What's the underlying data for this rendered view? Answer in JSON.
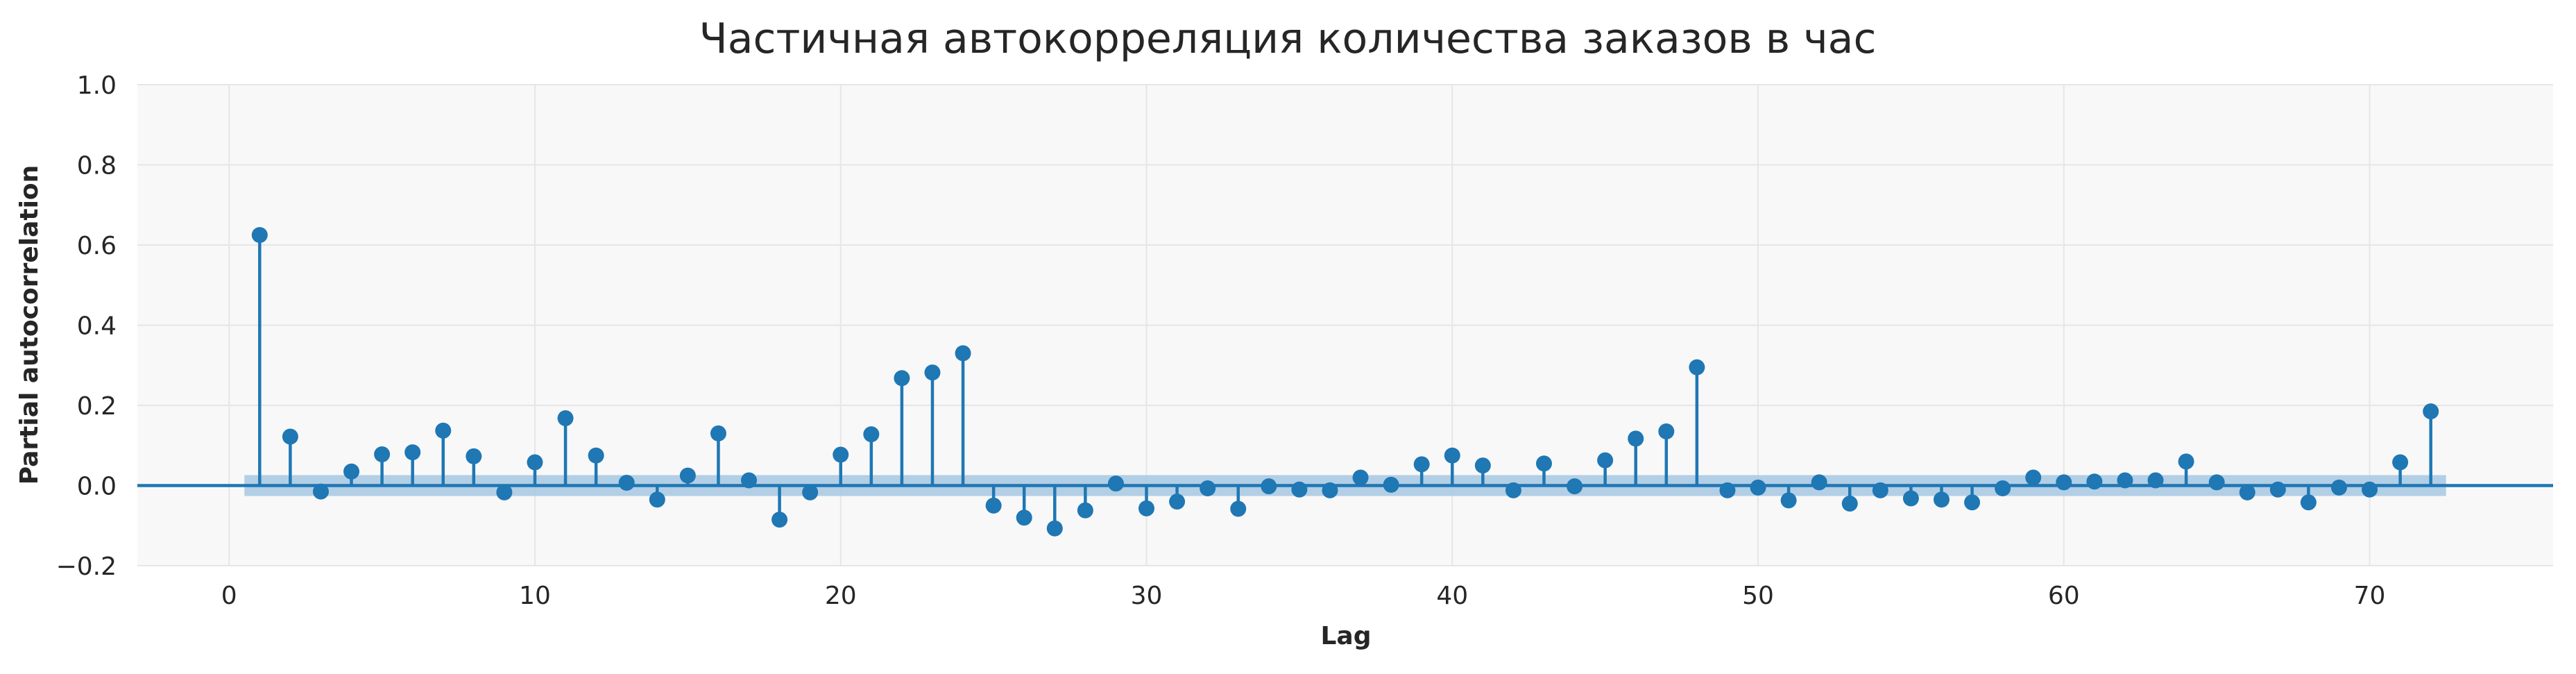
{
  "chart_data": {
    "type": "stem",
    "title": "Частичная автокорреляция количества заказов в час",
    "xlabel": "Lag",
    "ylabel": "Partial autocorrelation",
    "xlim": [
      -3,
      76
    ],
    "ylim": [
      -0.2,
      1.0
    ],
    "xticks": [
      0,
      10,
      20,
      30,
      40,
      50,
      60,
      70
    ],
    "yticks": [
      -0.2,
      0.0,
      0.2,
      0.4,
      0.6,
      0.8,
      1.0
    ],
    "xtick_labels": [
      "0",
      "10",
      "20",
      "30",
      "40",
      "50",
      "60",
      "70"
    ],
    "ytick_labels": [
      "−0.2",
      "0.0",
      "0.2",
      "0.4",
      "0.6",
      "0.8",
      "1.0"
    ],
    "grid": true,
    "confidence_band": {
      "x_range": [
        0.5,
        72.5
      ],
      "lower": -0.026,
      "upper": 0.026
    },
    "colors": {
      "stem": "#1f77b4",
      "band": "#a6c8e3",
      "background": "#f8f8f8",
      "grid": "#e6e6e6"
    },
    "lags": [
      1,
      2,
      3,
      4,
      5,
      6,
      7,
      8,
      9,
      10,
      11,
      12,
      13,
      14,
      15,
      16,
      17,
      18,
      19,
      20,
      21,
      22,
      23,
      24,
      25,
      26,
      27,
      28,
      29,
      30,
      31,
      32,
      33,
      34,
      35,
      36,
      37,
      38,
      39,
      40,
      41,
      42,
      43,
      44,
      45,
      46,
      47,
      48,
      49,
      50,
      51,
      52,
      53,
      54,
      55,
      56,
      57,
      58,
      59,
      60,
      61,
      62,
      63,
      64,
      65,
      66,
      67,
      68,
      69,
      70,
      71,
      72
    ],
    "values": [
      0.625,
      0.122,
      -0.015,
      0.035,
      0.078,
      0.083,
      0.137,
      0.073,
      -0.017,
      0.058,
      0.168,
      0.075,
      0.007,
      -0.035,
      0.025,
      0.13,
      0.013,
      -0.085,
      -0.017,
      0.077,
      0.128,
      0.268,
      0.282,
      0.33,
      -0.05,
      -0.08,
      -0.107,
      -0.062,
      0.005,
      -0.057,
      -0.04,
      -0.007,
      -0.058,
      -0.002,
      -0.01,
      -0.012,
      0.02,
      0.002,
      0.053,
      0.075,
      0.05,
      -0.012,
      0.055,
      -0.002,
      0.063,
      0.117,
      0.135,
      0.295,
      -0.012,
      -0.005,
      -0.037,
      0.008,
      -0.045,
      -0.012,
      -0.032,
      -0.035,
      -0.042,
      -0.007,
      0.02,
      0.008,
      0.01,
      0.013,
      0.013,
      0.06,
      0.008,
      -0.017,
      -0.01,
      -0.042,
      -0.005,
      -0.01,
      0.058,
      0.185
    ]
  }
}
